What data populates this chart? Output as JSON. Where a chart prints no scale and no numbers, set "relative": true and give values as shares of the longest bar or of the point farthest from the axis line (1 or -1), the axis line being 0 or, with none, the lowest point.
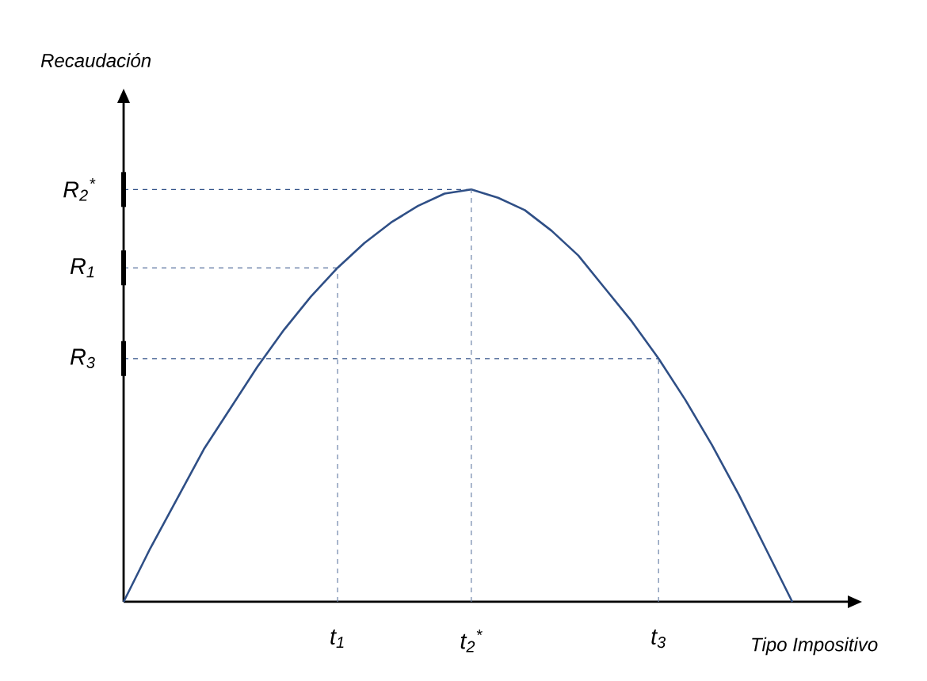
{
  "chart_data": {
    "type": "line",
    "relative": true,
    "xlabel": "Tipo Impositivo",
    "annotations": [
      "Recaudación"
    ],
    "categories": [
      null,
      null,
      null,
      null,
      null,
      null,
      null,
      null,
      "t$_{1}$",
      null,
      null,
      null,
      null,
      "t$_{2}$$^{*}$",
      null,
      null,
      null,
      null,
      null,
      null,
      "t$_{3}$",
      null,
      null,
      null,
      null,
      null
    ],
    "series": [
      {
        "color": "#2f4f86",
        "values": [
          0,
          0.13,
          0.25,
          0.37,
          0.47,
          0.57,
          0.66,
          0.74,
          0.81,
          0.87,
          0.92,
          0.96,
          0.99,
          1,
          0.98,
          0.95,
          0.9,
          0.84,
          0.76,
          0.68,
          0.59,
          0.49,
          0.38,
          0.26,
          0.13,
          0
        ]
      }
    ],
    "ref_lines": [
      {
        "axis": "y",
        "value": 0.81,
        "label": "R$_{1}$",
        "line_style": "dashed"
      },
      {
        "axis": "y",
        "value": 1,
        "label": "R$_{2}$$^{*}$",
        "line_style": "dashed"
      },
      {
        "axis": "y",
        "value": 0.59,
        "label": "R$_{3}$",
        "line_style": "dashed"
      }
    ],
    "marker": "none",
    "line_style": "solid"
  }
}
